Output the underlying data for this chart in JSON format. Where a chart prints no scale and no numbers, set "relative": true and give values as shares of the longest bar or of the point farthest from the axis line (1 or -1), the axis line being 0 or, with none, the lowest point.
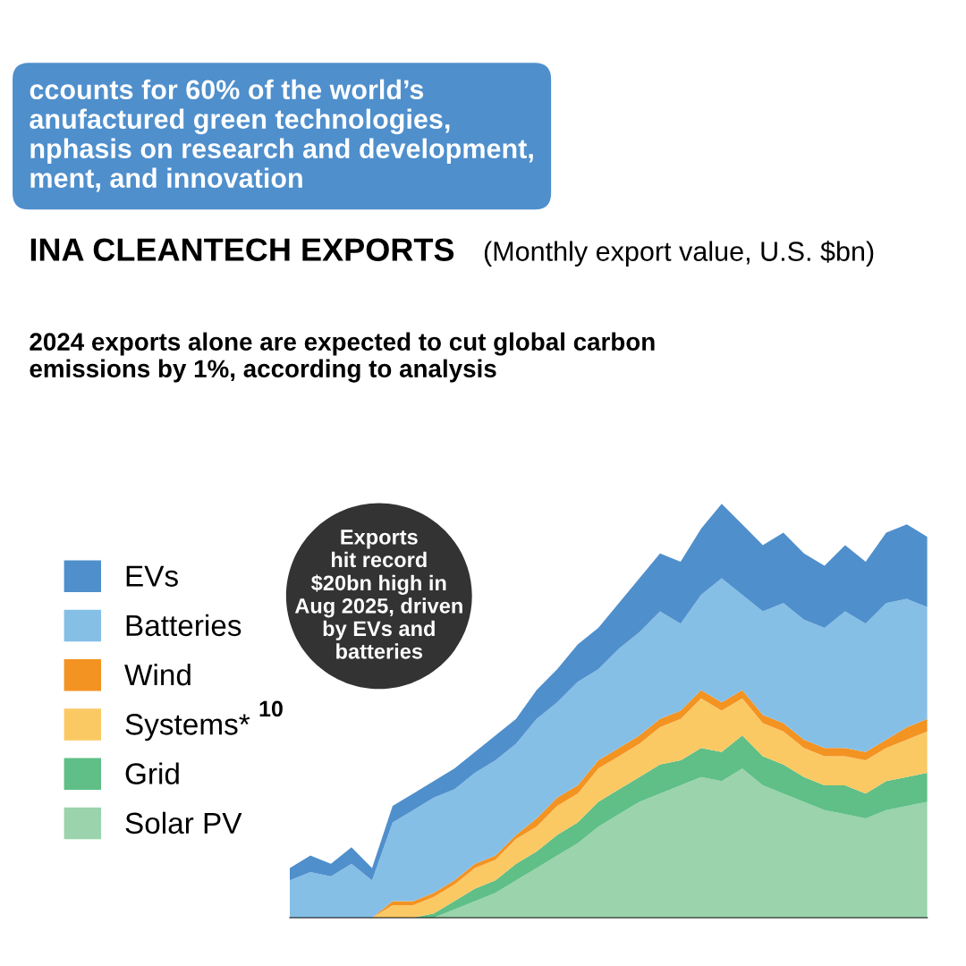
{
  "chart_data": {
    "type": "area",
    "stacked": true,
    "relative": true,
    "title": "INA CLEANTECH EXPORTS",
    "subtitle": "(Monthly export value, U.S. $bn)",
    "annotations": [
      "ccounts for 60% of the world’s\nanufactured green technologies,\nnphasis on research and development,\nment, and innovation",
      "2024 exports alone are expected to cut global carbon\nemissions by 1%, according to analysis",
      "Exports\nhit record\n$20bn high in\nAug 2025, driven\nby EVs and\nbatteries",
      "10"
    ],
    "categories": [
      null,
      null,
      null,
      null,
      null,
      null,
      null,
      null,
      null,
      null,
      null,
      null,
      null,
      null,
      null,
      null,
      null,
      null,
      null,
      null,
      null,
      null,
      null,
      null,
      null,
      null,
      null,
      null,
      null,
      null,
      null,
      null
    ],
    "series": [
      {
        "name": "Solar PV",
        "color": "#9ad3ac",
        "values": [
          0,
          0,
          0,
          0,
          0,
          0,
          0,
          0,
          0.02,
          0.04,
          0.06,
          0.09,
          0.12,
          0.15,
          0.18,
          0.22,
          0.25,
          0.28,
          0.3,
          0.32,
          0.34,
          0.33,
          0.36,
          0.32,
          0.3,
          0.28,
          0.26,
          0.25,
          0.24,
          0.26,
          0.27,
          0.28
        ]
      },
      {
        "name": "Grid",
        "color": "#5fbf86",
        "values": [
          0,
          0,
          0,
          0,
          0,
          0,
          0,
          0.01,
          0.02,
          0.03,
          0.03,
          0.04,
          0.04,
          0.05,
          0.05,
          0.06,
          0.06,
          0.06,
          0.07,
          0.06,
          0.07,
          0.07,
          0.08,
          0.07,
          0.07,
          0.06,
          0.06,
          0.07,
          0.06,
          0.07,
          0.07,
          0.07
        ]
      },
      {
        "name": "Systems*",
        "color": "#fbc964",
        "values": [
          0,
          0,
          0,
          0,
          0,
          0.03,
          0.03,
          0.04,
          0.04,
          0.05,
          0.05,
          0.06,
          0.06,
          0.07,
          0.07,
          0.08,
          0.08,
          0.08,
          0.09,
          0.1,
          0.12,
          0.1,
          0.09,
          0.08,
          0.08,
          0.07,
          0.07,
          0.07,
          0.08,
          0.08,
          0.09,
          0.1
        ]
      },
      {
        "name": "Wind",
        "color": "#f39321",
        "values": [
          0,
          0,
          0,
          0,
          0,
          0.01,
          0.01,
          0.01,
          0.01,
          0.01,
          0.01,
          0.01,
          0.02,
          0.02,
          0.02,
          0.02,
          0.02,
          0.02,
          0.02,
          0.02,
          0.02,
          0.02,
          0.02,
          0.02,
          0.02,
          0.02,
          0.02,
          0.02,
          0.02,
          0.02,
          0.03,
          0.03
        ]
      },
      {
        "name": "Batteries",
        "color": "#85bfe6",
        "values": [
          0.09,
          0.11,
          0.1,
          0.13,
          0.09,
          0.19,
          0.22,
          0.23,
          0.22,
          0.22,
          0.23,
          0.22,
          0.24,
          0.23,
          0.25,
          0.22,
          0.24,
          0.25,
          0.26,
          0.21,
          0.23,
          0.3,
          0.23,
          0.25,
          0.29,
          0.29,
          0.29,
          0.33,
          0.31,
          0.33,
          0.31,
          0.27
        ]
      },
      {
        "name": "EVs",
        "color": "#4f8fcc",
        "values": [
          0.03,
          0.04,
          0.03,
          0.04,
          0.03,
          0.04,
          0.04,
          0.04,
          0.05,
          0.05,
          0.06,
          0.06,
          0.07,
          0.08,
          0.09,
          0.1,
          0.11,
          0.13,
          0.14,
          0.15,
          0.16,
          0.18,
          0.17,
          0.16,
          0.17,
          0.16,
          0.15,
          0.16,
          0.15,
          0.17,
          0.18,
          0.17
        ]
      }
    ],
    "legend": "left"
  }
}
